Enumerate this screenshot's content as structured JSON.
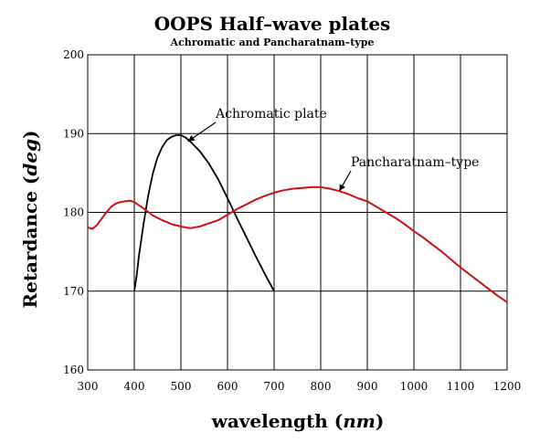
{
  "chart_data": {
    "type": "line",
    "title": "OOPS Half–wave plates",
    "subtitle": "Achromatic and Pancharatnam–type",
    "xlabel": "wavelength",
    "xlabel_unit": "nm",
    "ylabel": "Retardance",
    "ylabel_unit": "deg",
    "xlim": [
      300,
      1200
    ],
    "ylim": [
      160,
      200
    ],
    "x_ticks": [
      300,
      400,
      500,
      600,
      700,
      800,
      900,
      1000,
      1100,
      1200
    ],
    "y_ticks": [
      160,
      170,
      180,
      190,
      200
    ],
    "grid": true,
    "series": [
      {
        "name": "Achromatic plate",
        "color": "#000000",
        "x": [
          400,
          405,
          410,
          420,
          430,
          440,
          450,
          460,
          470,
          480,
          490,
          500,
          510,
          520,
          540,
          560,
          580,
          600,
          620,
          640,
          660,
          680,
          700
        ],
        "y": [
          170.0,
          172.0,
          174.5,
          178.6,
          182.2,
          185.0,
          187.0,
          188.3,
          189.2,
          189.6,
          189.8,
          189.8,
          189.5,
          189.0,
          187.8,
          186.2,
          184.2,
          181.8,
          179.3,
          176.9,
          174.5,
          172.2,
          170.0
        ]
      },
      {
        "name": "Pancharatnam–type",
        "color": "#d01010",
        "x": [
          300,
          310,
          320,
          330,
          340,
          350,
          360,
          370,
          380,
          390,
          400,
          420,
          440,
          460,
          480,
          500,
          520,
          540,
          560,
          580,
          600,
          620,
          640,
          660,
          680,
          700,
          720,
          740,
          760,
          780,
          800,
          820,
          840,
          860,
          880,
          900,
          920,
          940,
          960,
          980,
          1000,
          1020,
          1040,
          1060,
          1080,
          1100,
          1120,
          1140,
          1160,
          1180,
          1200
        ],
        "y": [
          178.1,
          177.9,
          178.4,
          179.2,
          180.0,
          180.7,
          181.1,
          181.3,
          181.4,
          181.5,
          181.3,
          180.5,
          179.6,
          179.0,
          178.5,
          178.2,
          178.0,
          178.2,
          178.6,
          179.0,
          179.7,
          180.4,
          181.0,
          181.6,
          182.1,
          182.5,
          182.8,
          183.0,
          183.1,
          183.2,
          183.2,
          183.0,
          182.7,
          182.3,
          181.8,
          181.4,
          180.7,
          180.0,
          179.3,
          178.5,
          177.6,
          176.8,
          175.9,
          175.0,
          174.0,
          173.0,
          172.1,
          171.2,
          170.3,
          169.4,
          168.6
        ]
      }
    ],
    "annotations": [
      {
        "text": "Achromatic plate",
        "target": [
          515,
          189.0
        ],
        "series": "Achromatic plate"
      },
      {
        "text": "Pancharatnam–type",
        "target": [
          840,
          182.7
        ],
        "series": "Pancharatnam–type"
      }
    ]
  }
}
